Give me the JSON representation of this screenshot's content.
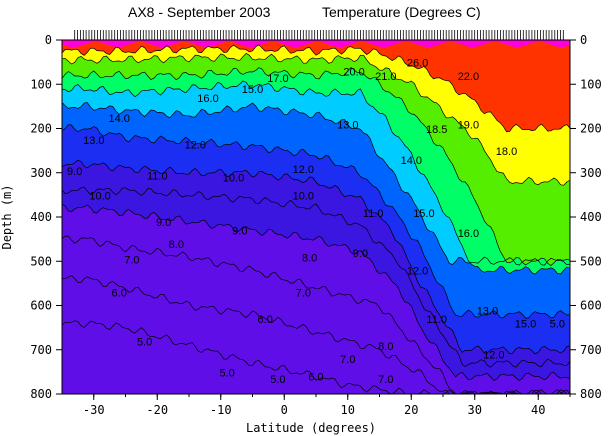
{
  "chart_data": {
    "type": "contour",
    "title": "AX8 - September 2003",
    "subtitle": "Temperature (Degrees C)",
    "xlabel": "Latitude (degrees)",
    "ylabel": "Depth (m)",
    "xlim": [
      -35,
      45
    ],
    "ylim": [
      800,
      0
    ],
    "xticks": [
      -30,
      -20,
      -10,
      0,
      10,
      20,
      30,
      40
    ],
    "yticks": [
      0,
      100,
      200,
      300,
      400,
      500,
      600,
      700,
      800
    ],
    "levels": [
      {
        "t": 4,
        "color": "#5f0ee8"
      },
      {
        "t": 8,
        "color": "#3a16e0"
      },
      {
        "t": 10,
        "color": "#1c2ef2"
      },
      {
        "t": 12,
        "color": "#0064ff"
      },
      {
        "t": 13,
        "color": "#0098ff"
      },
      {
        "t": 14,
        "color": "#00ccff"
      },
      {
        "t": 15,
        "color": "#00ffdd"
      },
      {
        "t": 16,
        "color": "#00ff66"
      },
      {
        "t": 18,
        "color": "#55ee00"
      },
      {
        "t": 20,
        "color": "#aaff00"
      },
      {
        "t": 21,
        "color": "#ffff00"
      },
      {
        "t": 22,
        "color": "#ffcc00"
      },
      {
        "t": 23,
        "color": "#ff8800"
      },
      {
        "t": 24,
        "color": "#ff3300"
      },
      {
        "t": 25,
        "color": "#ee0044"
      },
      {
        "t": 26,
        "color": "#ff00dd"
      }
    ],
    "isotherms": [
      {
        "t": 5,
        "depths": [
          [
            -31,
            640
          ],
          [
            -25,
            650
          ],
          [
            -15,
            690
          ],
          [
            -5,
            730
          ],
          [
            5,
            760
          ],
          [
            10,
            780
          ],
          [
            20,
            800
          ]
        ]
      },
      {
        "t": 6,
        "depths": [
          [
            -31,
            540
          ],
          [
            -25,
            560
          ],
          [
            -15,
            600
          ],
          [
            -5,
            620
          ],
          [
            5,
            660
          ],
          [
            15,
            700
          ],
          [
            22,
            760
          ],
          [
            25,
            800
          ]
        ]
      },
      {
        "t": 7,
        "depths": [
          [
            -31,
            450
          ],
          [
            -25,
            470
          ],
          [
            -15,
            490
          ],
          [
            -5,
            520
          ],
          [
            5,
            560
          ],
          [
            15,
            600
          ],
          [
            20,
            680
          ],
          [
            25,
            760
          ],
          [
            27,
            800
          ]
        ]
      },
      {
        "t": 8,
        "depths": [
          [
            -31,
            380
          ],
          [
            -25,
            390
          ],
          [
            -15,
            410
          ],
          [
            -5,
            430
          ],
          [
            5,
            450
          ],
          [
            12,
            480
          ],
          [
            18,
            560
          ],
          [
            22,
            660
          ],
          [
            27,
            760
          ]
        ]
      },
      {
        "t": 9,
        "depths": [
          [
            -31,
            340
          ],
          [
            -25,
            340
          ],
          [
            -15,
            350
          ],
          [
            -5,
            360
          ],
          [
            5,
            380
          ],
          [
            12,
            420
          ],
          [
            18,
            500
          ],
          [
            22,
            600
          ],
          [
            28,
            730
          ]
        ]
      },
      {
        "t": 10,
        "depths": [
          [
            -31,
            280
          ],
          [
            -25,
            290
          ],
          [
            -15,
            300
          ],
          [
            -5,
            300
          ],
          [
            5,
            320
          ],
          [
            12,
            360
          ],
          [
            17,
            430
          ],
          [
            21,
            540
          ],
          [
            28,
            700
          ]
        ]
      },
      {
        "t": 12,
        "depths": [
          [
            -31,
            200
          ],
          [
            -25,
            220
          ],
          [
            -15,
            230
          ],
          [
            -5,
            240
          ],
          [
            5,
            260
          ],
          [
            12,
            300
          ],
          [
            17,
            380
          ],
          [
            21,
            460
          ],
          [
            27,
            620
          ]
        ]
      },
      {
        "t": 14,
        "depths": [
          [
            -31,
            150
          ],
          [
            -25,
            160
          ],
          [
            -15,
            170
          ],
          [
            -5,
            150
          ],
          [
            5,
            170
          ],
          [
            12,
            200
          ],
          [
            16,
            280
          ],
          [
            20,
            360
          ],
          [
            26,
            500
          ]
        ]
      },
      {
        "t": 16,
        "depths": [
          [
            -31,
            110
          ],
          [
            -25,
            120
          ],
          [
            -15,
            110
          ],
          [
            -5,
            100
          ],
          [
            5,
            120
          ],
          [
            12,
            120
          ],
          [
            16,
            180
          ],
          [
            20,
            260
          ],
          [
            25,
            380
          ],
          [
            30,
            520
          ]
        ]
      },
      {
        "t": 18,
        "depths": [
          [
            -31,
            80
          ],
          [
            -25,
            80
          ],
          [
            -15,
            80
          ],
          [
            -5,
            70
          ],
          [
            5,
            80
          ],
          [
            12,
            70
          ],
          [
            16,
            110
          ],
          [
            20,
            160
          ],
          [
            25,
            250
          ],
          [
            30,
            360
          ],
          [
            35,
            500
          ]
        ]
      },
      {
        "t": 21,
        "depths": [
          [
            -31,
            45
          ],
          [
            -25,
            45
          ],
          [
            -15,
            40
          ],
          [
            -5,
            40
          ],
          [
            5,
            45
          ],
          [
            12,
            40
          ],
          [
            16,
            70
          ],
          [
            20,
            100
          ],
          [
            25,
            160
          ],
          [
            30,
            220
          ],
          [
            35,
            320
          ]
        ]
      },
      {
        "t": 24,
        "depths": [
          [
            -31,
            25
          ],
          [
            -25,
            25
          ],
          [
            -15,
            20
          ],
          [
            -5,
            20
          ],
          [
            5,
            25
          ],
          [
            12,
            20
          ],
          [
            16,
            35
          ],
          [
            20,
            55
          ],
          [
            25,
            90
          ],
          [
            30,
            140
          ],
          [
            35,
            200
          ]
        ]
      }
    ],
    "contour_labels": [
      {
        "text": "26.0",
        "x": 21,
        "y": 60
      },
      {
        "text": "22.0",
        "x": 29,
        "y": 90
      },
      {
        "text": "17.0",
        "x": -1,
        "y": 95
      },
      {
        "text": "16.0",
        "x": -12,
        "y": 140
      },
      {
        "text": "15.0",
        "x": -5,
        "y": 120
      },
      {
        "text": "14.0",
        "x": -26,
        "y": 185
      },
      {
        "text": "13.0",
        "x": -30,
        "y": 235
      },
      {
        "text": "12.0",
        "x": -14,
        "y": 245
      },
      {
        "text": "11.0",
        "x": -20,
        "y": 315
      },
      {
        "text": "10.0",
        "x": -8,
        "y": 320
      },
      {
        "text": "10.0",
        "x": -29,
        "y": 360
      },
      {
        "text": "12.0",
        "x": 3,
        "y": 300
      },
      {
        "text": "10.0",
        "x": 3,
        "y": 360
      },
      {
        "text": "9.0",
        "x": -7,
        "y": 440
      },
      {
        "text": "9.0",
        "x": -19,
        "y": 420
      },
      {
        "text": "8.0",
        "x": -17,
        "y": 470
      },
      {
        "text": "8.0",
        "x": 4,
        "y": 500
      },
      {
        "text": "7.0",
        "x": -24,
        "y": 505
      },
      {
        "text": "7.0",
        "x": 3,
        "y": 580
      },
      {
        "text": "6.0",
        "x": -26,
        "y": 580
      },
      {
        "text": "6.0",
        "x": -3,
        "y": 640
      },
      {
        "text": "5.0",
        "x": -22,
        "y": 690
      },
      {
        "text": "5.0",
        "x": -9,
        "y": 760
      },
      {
        "text": "5.0",
        "x": -1,
        "y": 775
      },
      {
        "text": "6.0",
        "x": 5,
        "y": 770
      },
      {
        "text": "7.0",
        "x": 10,
        "y": 730
      },
      {
        "text": "7.0",
        "x": 16,
        "y": 775
      },
      {
        "text": "8.0",
        "x": 16,
        "y": 700
      },
      {
        "text": "9.0",
        "x": 12,
        "y": 490
      },
      {
        "text": "11.0",
        "x": 14,
        "y": 400
      },
      {
        "text": "13.0",
        "x": 10,
        "y": 200
      },
      {
        "text": "14.0",
        "x": 20,
        "y": 280
      },
      {
        "text": "15.0",
        "x": 22,
        "y": 400
      },
      {
        "text": "12.0",
        "x": 21,
        "y": 530
      },
      {
        "text": "11.0",
        "x": 24,
        "y": 640
      },
      {
        "text": "16.0",
        "x": 29,
        "y": 445
      },
      {
        "text": "13.0",
        "x": 32,
        "y": 620
      },
      {
        "text": "12.0",
        "x": 33,
        "y": 720
      },
      {
        "text": "18.5",
        "x": 24,
        "y": 210
      },
      {
        "text": "19.0",
        "x": 29,
        "y": 200
      },
      {
        "text": "18.0",
        "x": 35,
        "y": 260
      },
      {
        "text": "21.0",
        "x": 16,
        "y": 90
      },
      {
        "text": "20.0",
        "x": 11,
        "y": 80
      },
      {
        "text": "9.0",
        "x": -33,
        "y": 305
      },
      {
        "text": "15.0",
        "x": 38,
        "y": 650
      },
      {
        "text": "5.0",
        "x": 43,
        "y": 650
      }
    ],
    "grid": false,
    "legend": "none"
  }
}
